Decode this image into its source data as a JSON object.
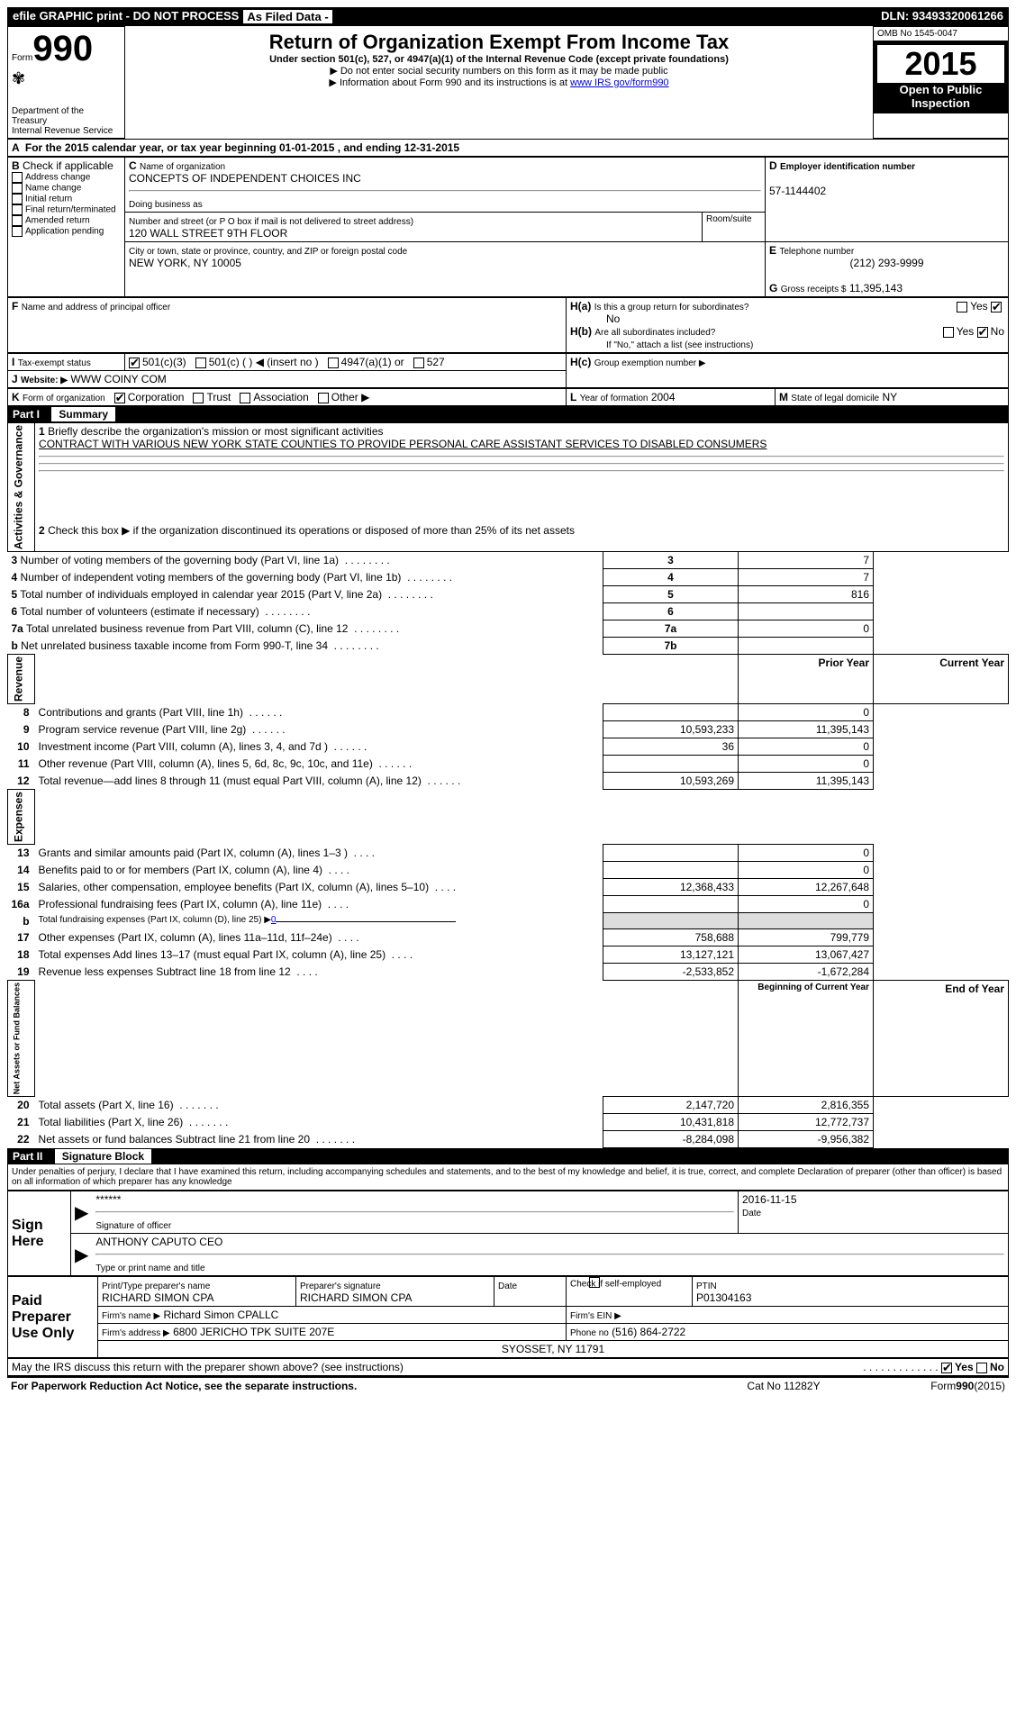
{
  "header_bar": {
    "left1": "efile GRAPHIC print - DO NOT PROCESS",
    "left2": "As Filed Data -",
    "right": "DLN: 93493320061266"
  },
  "form_label": "Form",
  "form_number": "990",
  "dept": "Department of the Treasury\nInternal Revenue Service",
  "title": "Return of Organization Exempt From Income Tax",
  "subtitle1": "Under section 501(c), 527, or 4947(a)(1) of the Internal Revenue Code (except private foundations)",
  "subtitle2": "▶ Do not enter social security numbers on this form as it may be made public",
  "subtitle3": "▶ Information about Form 990 and its instructions is at ",
  "irs_link": "www IRS gov/form990",
  "omb": "OMB No 1545-0047",
  "year": "2015",
  "inspect": "Open to Public Inspection",
  "line_a": "For the 2015 calendar year, or tax year beginning 01-01-2015    , and ending 12-31-2015",
  "section_b": {
    "label": "Check if applicable",
    "items": [
      "Address change",
      "Name change",
      "Initial return",
      "Final return/terminated",
      "Amended return",
      "Application pending"
    ]
  },
  "section_c": {
    "label": "Name of organization",
    "name": "CONCEPTS OF INDEPENDENT CHOICES INC",
    "dba_label": "Doing business as",
    "addr_label": "Number and street (or P O box if mail is not delivered to street address)",
    "room_label": "Room/suite",
    "addr": "120 WALL STREET 9TH FLOOR",
    "city_label": "City or town, state or province, country, and ZIP or foreign postal code",
    "city": "NEW YORK, NY 10005"
  },
  "section_d": {
    "label": "Employer identification number",
    "value": "57-1144402"
  },
  "section_e": {
    "label": "Telephone number",
    "value": "(212) 293-9999"
  },
  "section_g": {
    "label": "Gross receipts $",
    "value": "11,395,143"
  },
  "section_f": {
    "label": "Name and address of principal officer"
  },
  "section_h": {
    "a": "Is this a group return for subordinates?",
    "a_no": "No",
    "b": "Are all subordinates included?",
    "b_note": "If \"No,\" attach a list (see instructions)",
    "c": "Group exemption number ▶"
  },
  "section_i": {
    "label": "Tax-exempt status",
    "opts": [
      "501(c)(3)",
      "501(c) (  ) ◀ (insert no )",
      "4947(a)(1) or",
      "527"
    ]
  },
  "section_j": {
    "label": "Website: ▶",
    "value": "WWW COINY COM"
  },
  "section_k": {
    "label": "Form of organization",
    "opts": [
      "Corporation",
      "Trust",
      "Association",
      "Other ▶"
    ]
  },
  "section_l": {
    "label": "Year of formation",
    "value": "2004"
  },
  "section_m": {
    "label": "State of legal domicile",
    "value": "NY"
  },
  "part1": {
    "label": "Part I",
    "title": "Summary",
    "line1_label": "Briefly describe the organization's mission or most significant activities",
    "line1_text": "CONTRACT WITH VARIOUS NEW YORK STATE COUNTIES TO PROVIDE PERSONAL CARE ASSISTANT SERVICES TO DISABLED CONSUMERS",
    "line2": "Check this box ▶      if the organization discontinued its operations or disposed of more than 25% of its net assets",
    "governance_rows": [
      {
        "idx": "3",
        "desc": "Number of voting members of the governing body (Part VI, line 1a)",
        "box": "3",
        "val": "7"
      },
      {
        "idx": "4",
        "desc": "Number of independent voting members of the governing body (Part VI, line 1b)",
        "box": "4",
        "val": "7"
      },
      {
        "idx": "5",
        "desc": "Total number of individuals employed in calendar year 2015 (Part V, line 2a)",
        "box": "5",
        "val": "816"
      },
      {
        "idx": "6",
        "desc": "Total number of volunteers (estimate if necessary)",
        "box": "6",
        "val": ""
      },
      {
        "idx": "7a",
        "desc": "Total unrelated business revenue from Part VIII, column (C), line 12",
        "box": "7a",
        "val": "0"
      },
      {
        "idx": "b",
        "desc": "Net unrelated business taxable income from Form 990-T, line 34",
        "box": "7b",
        "val": ""
      }
    ],
    "prior_header": "Prior Year",
    "current_header": "Current Year",
    "revenue_label": "Revenue",
    "revenue_rows": [
      {
        "idx": "8",
        "desc": "Contributions and grants (Part VIII, line 1h)",
        "prior": "",
        "current": "0"
      },
      {
        "idx": "9",
        "desc": "Program service revenue (Part VIII, line 2g)",
        "prior": "10,593,233",
        "current": "11,395,143"
      },
      {
        "idx": "10",
        "desc": "Investment income (Part VIII, column (A), lines 3, 4, and 7d )",
        "prior": "36",
        "current": "0"
      },
      {
        "idx": "11",
        "desc": "Other revenue (Part VIII, column (A), lines 5, 6d, 8c, 9c, 10c, and 11e)",
        "prior": "",
        "current": "0"
      },
      {
        "idx": "12",
        "desc": "Total revenue—add lines 8 through 11 (must equal Part VIII, column (A), line 12)",
        "prior": "10,593,269",
        "current": "11,395,143"
      }
    ],
    "expenses_label": "Expenses",
    "expenses_rows": [
      {
        "idx": "13",
        "desc": "Grants and similar amounts paid (Part IX, column (A), lines 1–3 )",
        "prior": "",
        "current": "0"
      },
      {
        "idx": "14",
        "desc": "Benefits paid to or for members (Part IX, column (A), line 4)",
        "prior": "",
        "current": "0"
      },
      {
        "idx": "15",
        "desc": "Salaries, other compensation, employee benefits (Part IX, column (A), lines 5–10)",
        "prior": "12,368,433",
        "current": "12,267,648"
      },
      {
        "idx": "16a",
        "desc": "Professional fundraising fees (Part IX, column (A), line 11e)",
        "prior": "",
        "current": "0"
      },
      {
        "idx": "b",
        "desc": "Total fundraising expenses (Part IX, column (D), line 25) ▶",
        "inline": "0",
        "prior": null,
        "current": null
      },
      {
        "idx": "17",
        "desc": "Other expenses (Part IX, column (A), lines 11a–11d, 11f–24e)",
        "prior": "758,688",
        "current": "799,779"
      },
      {
        "idx": "18",
        "desc": "Total expenses Add lines 13–17 (must equal Part IX, column (A), line 25)",
        "prior": "13,127,121",
        "current": "13,067,427"
      },
      {
        "idx": "19",
        "desc": "Revenue less expenses Subtract line 18 from line 12",
        "prior": "-2,533,852",
        "current": "-1,672,284"
      }
    ],
    "netassets_label": "Net Assets or Fund Balances",
    "begin_header": "Beginning of Current Year",
    "end_header": "End of Year",
    "netassets_rows": [
      {
        "idx": "20",
        "desc": "Total assets (Part X, line 16)",
        "prior": "2,147,720",
        "current": "2,816,355"
      },
      {
        "idx": "21",
        "desc": "Total liabilities (Part X, line 26)",
        "prior": "10,431,818",
        "current": "12,772,737"
      },
      {
        "idx": "22",
        "desc": "Net assets or fund balances Subtract line 21 from line 20",
        "prior": "-8,284,098",
        "current": "-9,956,382"
      }
    ]
  },
  "part2": {
    "label": "Part II",
    "title": "Signature Block",
    "declaration": "Under penalties of perjury, I declare that I have examined this return, including accompanying schedules and statements, and to the best of my knowledge and belief, it is true, correct, and complete Declaration of preparer (other than officer) is based on all information of which preparer has any knowledge",
    "sign_here": "Sign Here",
    "sig_stars": "******",
    "sig_officer_label": "Signature of officer",
    "sig_date": "2016-11-15",
    "sig_date_label": "Date",
    "officer_name": "ANTHONY CAPUTO CEO",
    "officer_name_label": "Type or print name and title",
    "paid_label": "Paid Preparer Use Only",
    "preparer_name_label": "Print/Type preparer's name",
    "preparer_name": "RICHARD SIMON CPA",
    "preparer_sig_label": "Preparer's signature",
    "preparer_sig": "RICHARD SIMON CPA",
    "date_label": "Date",
    "check_label": "Check      if self-employed",
    "ptin_label": "PTIN",
    "ptin": "P01304163",
    "firm_name_label": "Firm's name    ▶",
    "firm_name": "Richard Simon CPALLC",
    "firm_ein_label": "Firm's EIN ▶",
    "firm_addr_label": "Firm's address ▶",
    "firm_addr": "6800 JERICHO TPK SUITE 207E",
    "firm_city": "SYOSSET, NY 11791",
    "phone_label": "Phone no",
    "phone": "(516) 864-2722",
    "may_discuss": "May the IRS discuss this return with the preparer shown above? (see instructions)"
  },
  "footer": {
    "paperwork": "For Paperwork Reduction Act Notice, see the separate instructions.",
    "catno": "Cat No 11282Y",
    "formno": "Form990(2015)"
  }
}
